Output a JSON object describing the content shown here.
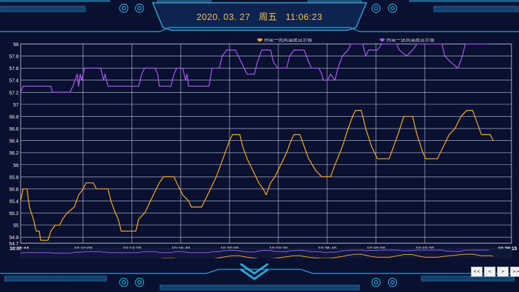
{
  "header": {
    "date": "2020. 03. 27",
    "weekday": "周五",
    "time": "11:06:23"
  },
  "nav_buttons": [
    "<<",
    "<",
    ">",
    ">>"
  ],
  "colors": {
    "background": "#0a1030",
    "frame": "#2aa8d8",
    "series_return": "#f5a623",
    "series_supply": "#a855f7",
    "grid": "#cfd4e6",
    "clock": "#f5c542"
  },
  "chart_data": {
    "type": "line",
    "ylim": [
      54.7,
      58
    ],
    "yticks": [
      58,
      57.8,
      57.6,
      57.4,
      57.2,
      57,
      56.8,
      56.6,
      56.4,
      56.2,
      56,
      55.8,
      55.6,
      55.4,
      55.2,
      55,
      54.8,
      54.7
    ],
    "xticks": [
      "10:05:44",
      "10:10:00",
      "10:13:20",
      "10:16:40",
      "10:20:00",
      "10:23:20",
      "10:26:40",
      "10:30:00",
      "10:33:20",
      "10:39:15"
    ],
    "xlim": [
      "10:05:44",
      "10:39:15"
    ],
    "series": [
      {
        "name": "热泵一回风温度显示值",
        "color": "#f5a623",
        "points": [
          [
            "10:05:44",
            55.4
          ],
          [
            "10:05:54",
            55.6
          ],
          [
            "10:06:10",
            55.6
          ],
          [
            "10:06:20",
            55.3
          ],
          [
            "10:06:36",
            55.1
          ],
          [
            "10:06:48",
            54.9
          ],
          [
            "10:07:00",
            54.9
          ],
          [
            "10:07:06",
            54.75
          ],
          [
            "10:07:36",
            54.75
          ],
          [
            "10:07:48",
            54.9
          ],
          [
            "10:08:06",
            55.0
          ],
          [
            "10:08:24",
            55.0
          ],
          [
            "10:08:36",
            55.1
          ],
          [
            "10:08:54",
            55.2
          ],
          [
            "10:09:24",
            55.3
          ],
          [
            "10:09:42",
            55.5
          ],
          [
            "10:10:00",
            55.6
          ],
          [
            "10:10:12",
            55.7
          ],
          [
            "10:10:42",
            55.7
          ],
          [
            "10:10:54",
            55.6
          ],
          [
            "10:11:42",
            55.6
          ],
          [
            "10:11:54",
            55.4
          ],
          [
            "10:12:12",
            55.2
          ],
          [
            "10:12:24",
            55.1
          ],
          [
            "10:12:36",
            54.9
          ],
          [
            "10:13:36",
            54.9
          ],
          [
            "10:13:48",
            55.1
          ],
          [
            "10:14:12",
            55.2
          ],
          [
            "10:14:36",
            55.4
          ],
          [
            "10:15:00",
            55.6
          ],
          [
            "10:15:12",
            55.7
          ],
          [
            "10:15:30",
            55.8
          ],
          [
            "10:16:12",
            55.8
          ],
          [
            "10:16:24",
            55.7
          ],
          [
            "10:16:48",
            55.5
          ],
          [
            "10:17:12",
            55.4
          ],
          [
            "10:17:24",
            55.3
          ],
          [
            "10:18:06",
            55.3
          ],
          [
            "10:18:18",
            55.4
          ],
          [
            "10:18:42",
            55.6
          ],
          [
            "10:19:06",
            55.8
          ],
          [
            "10:19:24",
            56.0
          ],
          [
            "10:19:42",
            56.2
          ],
          [
            "10:20:00",
            56.4
          ],
          [
            "10:20:12",
            56.5
          ],
          [
            "10:20:42",
            56.5
          ],
          [
            "10:20:54",
            56.3
          ],
          [
            "10:21:12",
            56.1
          ],
          [
            "10:21:36",
            55.9
          ],
          [
            "10:22:00",
            55.7
          ],
          [
            "10:22:18",
            55.6
          ],
          [
            "10:22:30",
            55.5
          ],
          [
            "10:22:48",
            55.7
          ],
          [
            "10:23:06",
            55.8
          ],
          [
            "10:23:30",
            56.0
          ],
          [
            "10:23:54",
            56.2
          ],
          [
            "10:24:12",
            56.4
          ],
          [
            "10:24:24",
            56.5
          ],
          [
            "10:24:48",
            56.5
          ],
          [
            "10:25:06",
            56.3
          ],
          [
            "10:25:24",
            56.1
          ],
          [
            "10:25:54",
            55.9
          ],
          [
            "10:26:18",
            55.8
          ],
          [
            "10:26:54",
            55.8
          ],
          [
            "10:27:12",
            56.0
          ],
          [
            "10:27:42",
            56.3
          ],
          [
            "10:28:06",
            56.6
          ],
          [
            "10:28:24",
            56.8
          ],
          [
            "10:28:36",
            56.9
          ],
          [
            "10:29:00",
            56.9
          ],
          [
            "10:29:18",
            56.6
          ],
          [
            "10:29:42",
            56.3
          ],
          [
            "10:30:06",
            56.1
          ],
          [
            "10:30:54",
            56.1
          ],
          [
            "10:31:12",
            56.3
          ],
          [
            "10:31:30",
            56.5
          ],
          [
            "10:31:54",
            56.8
          ],
          [
            "10:32:30",
            56.8
          ],
          [
            "10:32:48",
            56.5
          ],
          [
            "10:33:12",
            56.2
          ],
          [
            "10:33:24",
            56.1
          ],
          [
            "10:34:12",
            56.1
          ],
          [
            "10:34:36",
            56.3
          ],
          [
            "10:35:00",
            56.5
          ],
          [
            "10:35:24",
            56.6
          ],
          [
            "10:35:48",
            56.8
          ],
          [
            "10:36:12",
            56.9
          ],
          [
            "10:36:36",
            56.9
          ],
          [
            "10:36:54",
            56.7
          ],
          [
            "10:37:12",
            56.5
          ],
          [
            "10:37:48",
            56.5
          ],
          [
            "10:38:00",
            56.4
          ]
        ]
      },
      {
        "name": "热泵一送风温度显示值",
        "color": "#a855f7",
        "points": [
          [
            "10:05:44",
            57.2
          ],
          [
            "10:05:54",
            57.3
          ],
          [
            "10:07:48",
            57.3
          ],
          [
            "10:07:54",
            57.2
          ],
          [
            "10:09:06",
            57.2
          ],
          [
            "10:09:18",
            57.3
          ],
          [
            "10:09:36",
            57.5
          ],
          [
            "10:09:42",
            57.3
          ],
          [
            "10:09:48",
            57.5
          ],
          [
            "10:09:54",
            57.4
          ],
          [
            "10:10:06",
            57.6
          ],
          [
            "10:11:12",
            57.6
          ],
          [
            "10:11:24",
            57.4
          ],
          [
            "10:11:30",
            57.5
          ],
          [
            "10:11:42",
            57.3
          ],
          [
            "10:13:48",
            57.3
          ],
          [
            "10:14:00",
            57.5
          ],
          [
            "10:14:12",
            57.6
          ],
          [
            "10:14:54",
            57.6
          ],
          [
            "10:15:06",
            57.5
          ],
          [
            "10:15:12",
            57.3
          ],
          [
            "10:16:00",
            57.3
          ],
          [
            "10:16:12",
            57.5
          ],
          [
            "10:16:24",
            57.6
          ],
          [
            "10:16:48",
            57.6
          ],
          [
            "10:17:00",
            57.4
          ],
          [
            "10:17:06",
            57.5
          ],
          [
            "10:17:12",
            57.3
          ],
          [
            "10:18:36",
            57.3
          ],
          [
            "10:18:48",
            57.6
          ],
          [
            "10:19:18",
            57.6
          ],
          [
            "10:19:30",
            57.8
          ],
          [
            "10:19:48",
            57.9
          ],
          [
            "10:20:24",
            57.9
          ],
          [
            "10:20:36",
            57.8
          ],
          [
            "10:21:00",
            57.6
          ],
          [
            "10:21:12",
            57.5
          ],
          [
            "10:21:42",
            57.5
          ],
          [
            "10:21:54",
            57.7
          ],
          [
            "10:22:12",
            57.9
          ],
          [
            "10:22:48",
            57.9
          ],
          [
            "10:23:00",
            57.7
          ],
          [
            "10:23:18",
            57.6
          ],
          [
            "10:23:54",
            57.6
          ],
          [
            "10:24:06",
            57.8
          ],
          [
            "10:24:24",
            57.9
          ],
          [
            "10:25:06",
            57.9
          ],
          [
            "10:25:24",
            57.7
          ],
          [
            "10:25:36",
            57.6
          ],
          [
            "10:26:06",
            57.6
          ],
          [
            "10:26:18",
            57.5
          ],
          [
            "10:26:24",
            57.4
          ],
          [
            "10:26:42",
            57.4
          ],
          [
            "10:26:54",
            57.5
          ],
          [
            "10:27:12",
            57.4
          ],
          [
            "10:27:24",
            57.6
          ],
          [
            "10:27:42",
            57.8
          ],
          [
            "10:28:06",
            57.9
          ],
          [
            "10:28:18",
            58.0
          ],
          [
            "10:29:06",
            58.0
          ],
          [
            "10:29:18",
            57.8
          ],
          [
            "10:29:30",
            57.9
          ],
          [
            "10:30:06",
            57.9
          ],
          [
            "10:30:24",
            58.0
          ],
          [
            "10:31:24",
            58.0
          ],
          [
            "10:31:36",
            57.9
          ],
          [
            "10:32:06",
            57.8
          ],
          [
            "10:32:30",
            57.9
          ],
          [
            "10:32:48",
            58.0
          ],
          [
            "10:34:30",
            58.0
          ],
          [
            "10:34:42",
            57.8
          ],
          [
            "10:35:06",
            57.7
          ],
          [
            "10:35:36",
            57.6
          ],
          [
            "10:35:54",
            57.8
          ],
          [
            "10:36:06",
            58.0
          ],
          [
            "10:37:12",
            58.0
          ],
          [
            "10:37:42",
            58.0
          ]
        ]
      }
    ]
  }
}
